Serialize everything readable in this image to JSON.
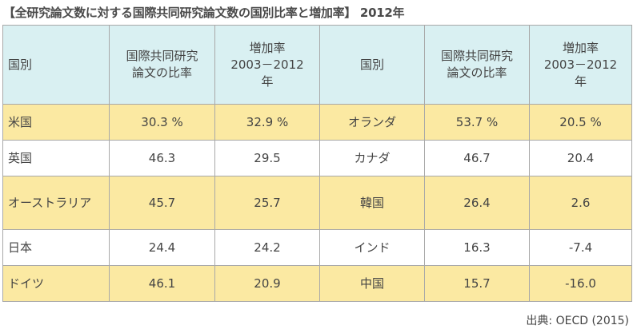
{
  "title": "【全研究論文数に対する国際共同研究論文数の国別比率と増加率】 2012年",
  "header": {
    "country": "国別",
    "ratio_line1": "国際共同研究",
    "ratio_line2": "論文の比率",
    "growth_line1": "増加率",
    "growth_line2": "2003－2012",
    "growth_line3": "年"
  },
  "rows": [
    {
      "c1": "米国",
      "r1": "30.3 %",
      "g1": "32.9 %",
      "c2": "オランダ",
      "r2": "53.7 %",
      "g2": "20.5 %"
    },
    {
      "c1": "英国",
      "r1": "46.3",
      "g1": "29.5",
      "c2": "カナダ",
      "r2": "46.7",
      "g2": "20.4"
    },
    {
      "c1": "オーストラリア",
      "r1": "45.7",
      "g1": "25.7",
      "c2": "韓国",
      "r2": "26.4",
      "g2": "2.6"
    },
    {
      "c1": "日本",
      "r1": "24.4",
      "g1": "24.2",
      "c2": "インド",
      "r2": "16.3",
      "g2": "-7.4"
    },
    {
      "c1": "ドイツ",
      "r1": "46.1",
      "g1": "20.9",
      "c2": "中国",
      "r2": "15.7",
      "g2": "-16.0"
    }
  ],
  "source": "出典: OECD (2015)"
}
